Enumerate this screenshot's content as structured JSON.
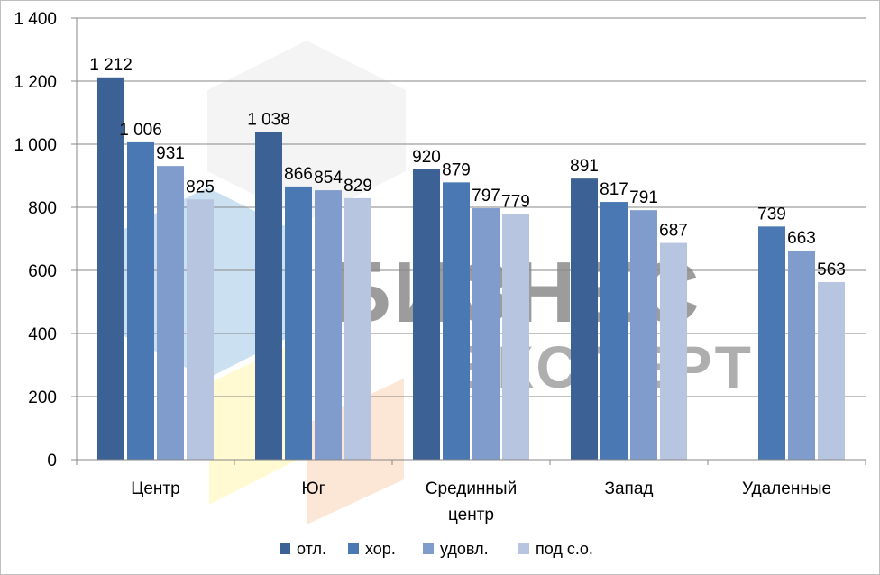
{
  "chart_data": {
    "type": "bar",
    "categories": [
      [
        "Центр"
      ],
      [
        "Юг"
      ],
      [
        "Срединный",
        "центр"
      ],
      [
        "Запад"
      ],
      [
        "Удаленные"
      ]
    ],
    "series": [
      {
        "name": "отл.",
        "color": "#3c6194",
        "values": [
          1212,
          1038,
          920,
          891,
          null
        ]
      },
      {
        "name": "хор.",
        "color": "#4a78b2",
        "values": [
          1006,
          866,
          879,
          817,
          739
        ]
      },
      {
        "name": "удовл.",
        "color": "#7f9ccc",
        "values": [
          931,
          854,
          797,
          791,
          663
        ]
      },
      {
        "name": "под с.о.",
        "color": "#b7c5e0",
        "values": [
          825,
          829,
          779,
          687,
          563
        ]
      }
    ],
    "data_labels": [
      [
        "1 212",
        "1 038",
        "920",
        "891",
        ""
      ],
      [
        "1 006",
        "866",
        "879",
        "817",
        "739"
      ],
      [
        "931",
        "854",
        "797",
        "791",
        "663"
      ],
      [
        "825",
        "829",
        "779",
        "687",
        "563"
      ]
    ],
    "yticks": [
      0,
      200,
      400,
      600,
      800,
      1000,
      1200,
      1400
    ],
    "ytick_labels": [
      "0",
      "200",
      "400",
      "600",
      "800",
      "1 000",
      "1 200",
      "1 400"
    ],
    "ylim": [
      0,
      1400
    ],
    "grid": true,
    "legend_position": "bottom",
    "title": "",
    "xlabel": "",
    "ylabel": ""
  },
  "watermark": {
    "line1": "БИЗНЕС",
    "line2": "ЭКСПЕРТ"
  }
}
